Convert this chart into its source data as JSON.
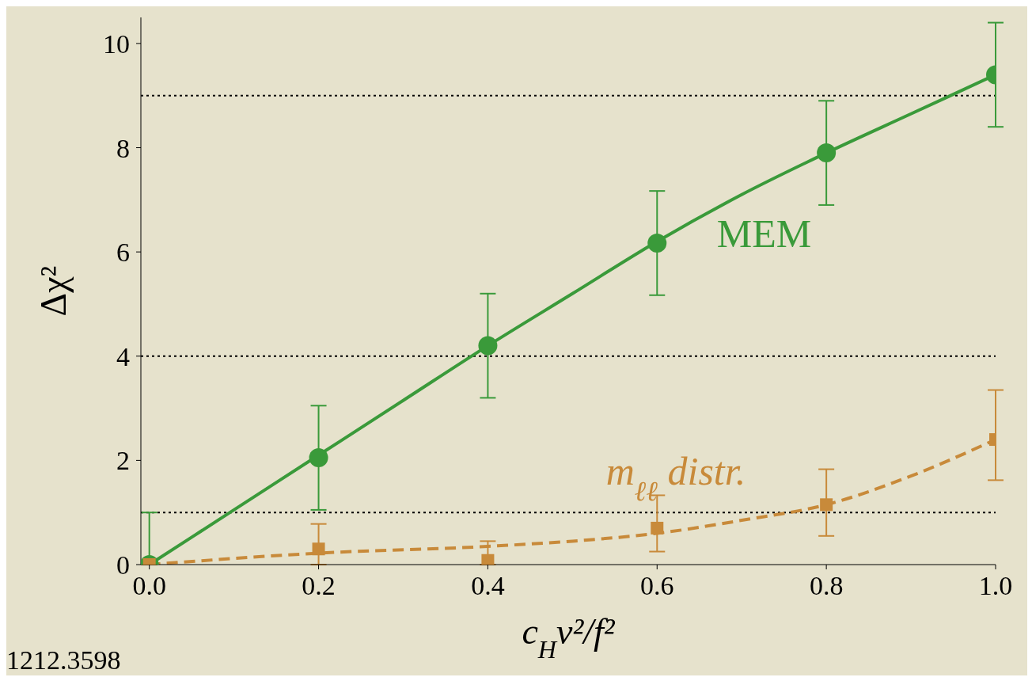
{
  "chart_data": {
    "type": "scatter",
    "xlabel": "c$_{H}$v²/f²",
    "ylabel": "Δχ²",
    "xlim": [
      -0.01,
      1.0
    ],
    "ylim": [
      0,
      10.5
    ],
    "xticks": [
      {
        "value": 0,
        "label": "0.0"
      },
      {
        "value": 0.2,
        "label": "0.2"
      },
      {
        "value": 0.4,
        "label": "0.4"
      },
      {
        "value": 0.6,
        "label": "0.6"
      },
      {
        "value": 0.8,
        "label": "0.8"
      },
      {
        "value": 1,
        "label": "1.0"
      }
    ],
    "yticks": [
      0,
      2,
      4,
      6,
      8,
      10
    ],
    "grid": false,
    "legend": false,
    "x": [
      0,
      0.2,
      0.4,
      0.6,
      0.8,
      1.0
    ],
    "series": [
      {
        "type": "line",
        "color": "#3a9a3a",
        "line_style": "solid",
        "marker": "none",
        "x": [
          0,
          0.1,
          0.2,
          0.3,
          0.4,
          0.5,
          0.6,
          0.7,
          0.8,
          0.9,
          1.0
        ],
        "values": [
          0,
          1.05,
          2.1,
          3.15,
          4.2,
          5.2,
          6.2,
          7.1,
          7.9,
          8.65,
          9.4
        ]
      },
      {
        "type": "line",
        "color": "#c88a3a",
        "line_style": "dashed",
        "marker": "none",
        "x": [
          0,
          0.2,
          0.4,
          0.5,
          0.6,
          0.7,
          0.8,
          0.9,
          1.0
        ],
        "values": [
          0,
          0.22,
          0.35,
          0.45,
          0.6,
          0.85,
          1.15,
          1.7,
          2.4
        ]
      },
      {
        "name": "MEM",
        "color": "#3a9a3a",
        "marker": "circle",
        "values": [
          0,
          2.05,
          4.2,
          6.17,
          7.9,
          9.4
        ],
        "errors": [
          [
            0,
            1
          ],
          1,
          1,
          1,
          1,
          1
        ]
      },
      {
        "name": "m$_{ℓℓ}$ distr.",
        "color": "#c88a3a",
        "marker": "square",
        "values": [
          0,
          0.3,
          0.08,
          0.7,
          1.15,
          2.4
        ],
        "errors": [
          null,
          [
            0,
            0.78
          ],
          [
            0,
            0.45
          ],
          [
            0.25,
            1.33
          ],
          [
            0.55,
            1.83
          ],
          [
            1.62,
            3.35
          ]
        ]
      }
    ],
    "ref_lines": [
      {
        "axis": "y",
        "value": 1,
        "color": "#000000",
        "line_style": "dotted"
      },
      {
        "axis": "y",
        "value": 4,
        "color": "#000000",
        "line_style": "dotted"
      },
      {
        "axis": "y",
        "value": 9,
        "color": "#000000",
        "line_style": "dotted"
      }
    ],
    "annotations": [
      "1212.3598"
    ]
  }
}
